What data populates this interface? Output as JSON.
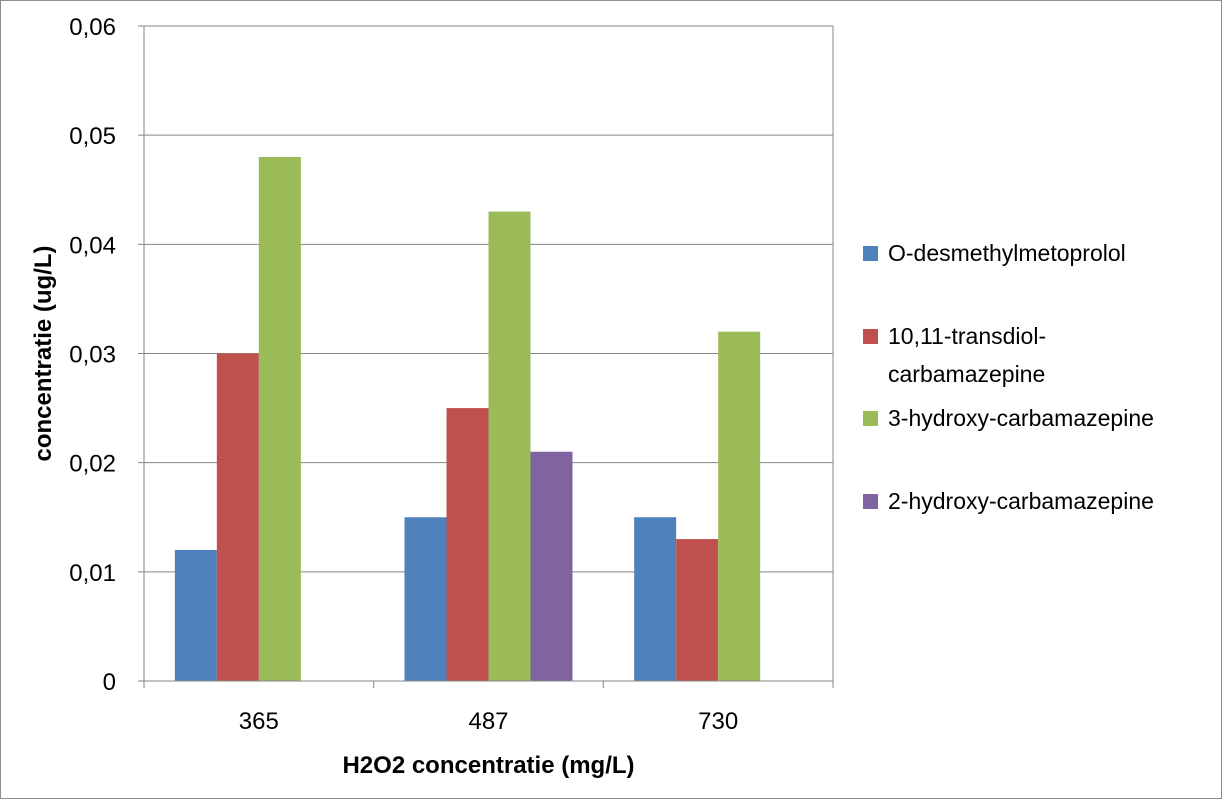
{
  "chart_data": {
    "type": "bar",
    "title": "",
    "xlabel": "H2O2 concentratie (mg/L)",
    "ylabel": "concentratie (ug/L)",
    "categories": [
      "365",
      "487",
      "730"
    ],
    "ylim": [
      0,
      0.06
    ],
    "yticks": [
      "0",
      "0,01",
      "0,02",
      "0,03",
      "0,04",
      "0,05",
      "0,06"
    ],
    "grid": true,
    "legend_position": "right",
    "series": [
      {
        "name": "O-desmethylmetoprolol",
        "legend_lines": [
          "O-desmethylmetoprolol"
        ],
        "color": "#4f81bd",
        "values": [
          0.012,
          0.015,
          0.015
        ]
      },
      {
        "name": "10,11-transdiol-carbamazepine",
        "legend_lines": [
          "10,11-transdiol-",
          "carbamazepine"
        ],
        "color": "#c0504d",
        "values": [
          0.03,
          0.025,
          0.013
        ]
      },
      {
        "name": "3-hydroxy-carbamazepine",
        "legend_lines": [
          "3-hydroxy-carbamazepine"
        ],
        "color": "#9bbb59",
        "values": [
          0.048,
          0.043,
          0.032
        ]
      },
      {
        "name": "2-hydroxy-carbamazepine",
        "legend_lines": [
          "2-hydroxy-carbamazepine"
        ],
        "color": "#8064a2",
        "values": [
          0,
          0.021,
          0
        ]
      }
    ]
  }
}
